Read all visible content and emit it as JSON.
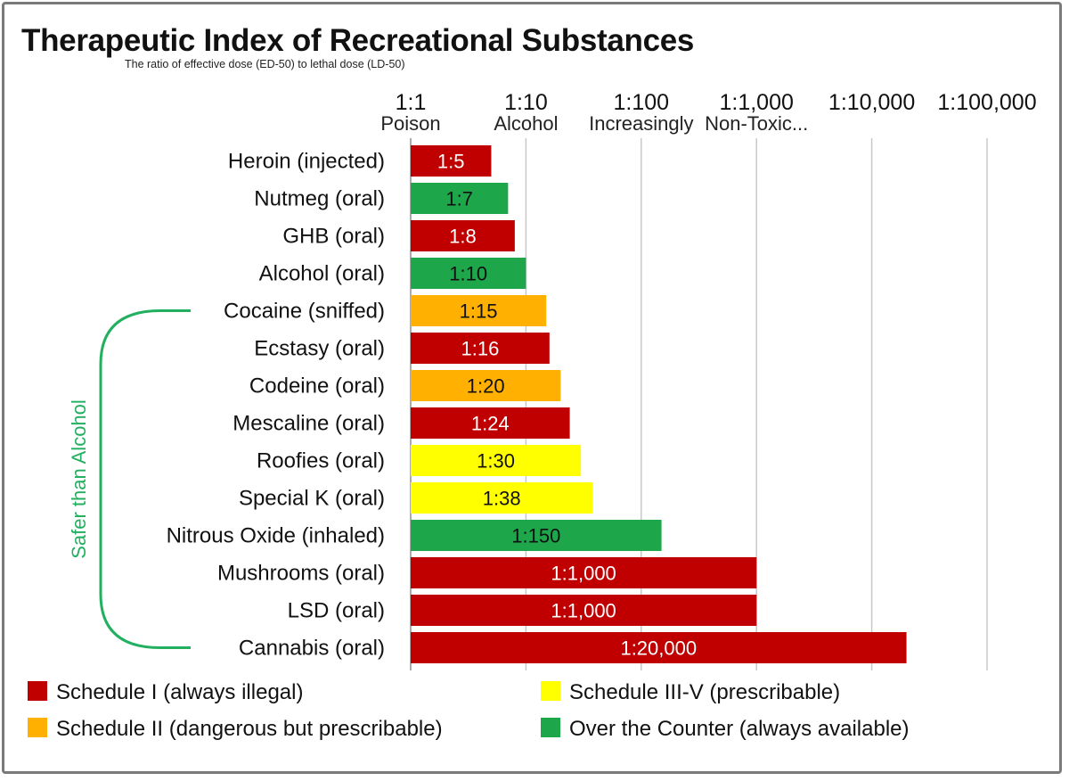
{
  "chart_data": {
    "type": "bar",
    "orientation": "horizontal",
    "title": "Therapeutic Index of Recreational Substances",
    "subtitle": "The ratio of effective dose (ED-50) to lethal dose (LD-50)",
    "xscale": "log",
    "xlim": [
      1,
      100000
    ],
    "grid": true,
    "x_ticks": [
      {
        "value": 1,
        "label": "1:1",
        "note": "Poison"
      },
      {
        "value": 10,
        "label": "1:10",
        "note": "Alcohol"
      },
      {
        "value": 100,
        "label": "1:100",
        "note": "Increasingly"
      },
      {
        "value": 1000,
        "label": "1:1,000",
        "note": "Non-Toxic..."
      },
      {
        "value": 10000,
        "label": "1:10,000",
        "note": ""
      },
      {
        "value": 100000,
        "label": "1:100,000",
        "note": ""
      }
    ],
    "categories": [
      "Heroin (injected)",
      "Nutmeg (oral)",
      "GHB (oral)",
      "Alcohol (oral)",
      "Cocaine (sniffed)",
      "Ecstasy (oral)",
      "Codeine (oral)",
      "Mescaline (oral)",
      "Roofies (oral)",
      "Special K (oral)",
      "Nitrous Oxide (inhaled)",
      "Mushrooms (oral)",
      "LSD (oral)",
      "Cannabis (oral)"
    ],
    "values": [
      5,
      7,
      8,
      10,
      15,
      16,
      20,
      24,
      30,
      38,
      150,
      1000,
      1000,
      20000
    ],
    "value_labels": [
      "1:5",
      "1:7",
      "1:8",
      "1:10",
      "1:15",
      "1:16",
      "1:20",
      "1:24",
      "1:30",
      "1:38",
      "1:150",
      "1:1,000",
      "1:1,000",
      "1:20,000"
    ],
    "groups": [
      "schedule1",
      "otc",
      "schedule1",
      "otc",
      "schedule2",
      "schedule1",
      "schedule2",
      "schedule1",
      "schedule3",
      "schedule3",
      "otc",
      "schedule1",
      "schedule1",
      "schedule1"
    ],
    "legend": [
      {
        "key": "schedule1",
        "label": "Schedule I (always illegal)",
        "color": "#c00000",
        "text_color": "#ffffff"
      },
      {
        "key": "schedule3",
        "label": "Schedule III-V (prescribable)",
        "color": "#ffff00",
        "text_color": "#111111"
      },
      {
        "key": "schedule2",
        "label": "Schedule II (dangerous but prescribable)",
        "color": "#ffb000",
        "text_color": "#111111"
      },
      {
        "key": "otc",
        "label": "Over the Counter (always available)",
        "color": "#1ea64b",
        "text_color": "#111111"
      }
    ],
    "legend_position": "bottom",
    "annotation": {
      "text": "Safer than Alcohol",
      "from_category": "Cocaine (sniffed)",
      "to_category": "Cannabis (oral)",
      "color": "#22b060"
    }
  }
}
